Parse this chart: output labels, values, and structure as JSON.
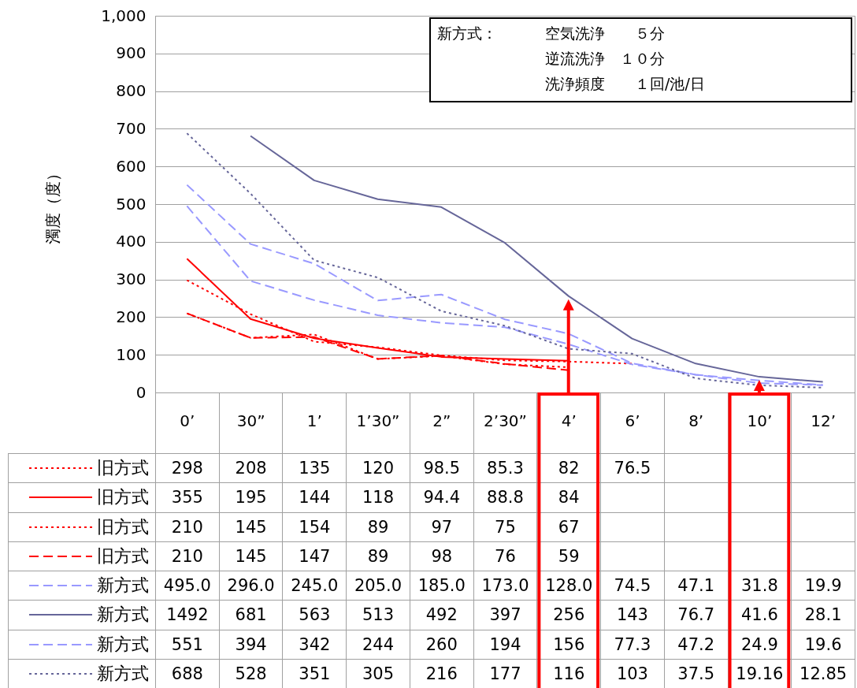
{
  "chart_data": {
    "type": "line",
    "ylabel": "濁度（度）",
    "categories": [
      "0’",
      "30”",
      "1’",
      "1’30”",
      "2”",
      "2’30”",
      "4’",
      "6’",
      "8’",
      "10’",
      "12’"
    ],
    "ylim": [
      0,
      1000
    ],
    "yticks": [
      0,
      100,
      200,
      300,
      400,
      500,
      600,
      700,
      800,
      900,
      {
        "value": 1000,
        "label": "1,000"
      }
    ],
    "grid": "y",
    "legend": "bottom",
    "marker": "none",
    "annotations": [
      "新方式：",
      "空気洗浄　　５分",
      "逆流洗浄　１０分",
      "洗浄頻度　　１回/池/日"
    ],
    "series": [
      {
        "name": "旧方式",
        "color": "#ff0000",
        "line_style": "dotted",
        "values": [
          298,
          208,
          135,
          120,
          98.5,
          85.3,
          82,
          76.5,
          null,
          null,
          null
        ],
        "value_labels": [
          "298",
          "208",
          "135",
          "120",
          "98.5",
          "85.3",
          "82",
          "76.5",
          null,
          null,
          null
        ]
      },
      {
        "name": "旧方式",
        "color": "#ff0000",
        "line_style": "solid",
        "values": [
          355,
          195,
          144,
          118,
          94.4,
          88.8,
          84,
          null,
          null,
          null,
          null
        ],
        "value_labels": [
          "355",
          "195",
          "144",
          "118",
          "94.4",
          "88.8",
          "84",
          null,
          null,
          null,
          null
        ]
      },
      {
        "name": "旧方式",
        "color": "#ff0000",
        "line_style": "dotted",
        "values": [
          210,
          145,
          154,
          89,
          97,
          75,
          67,
          null,
          null,
          null,
          null
        ],
        "value_labels": [
          "210",
          "145",
          "154",
          "89",
          "97",
          "75",
          "67",
          null,
          null,
          null,
          null
        ]
      },
      {
        "name": "旧方式",
        "color": "#ff0000",
        "line_style": "dashed",
        "values": [
          210,
          145,
          147,
          89,
          98,
          76,
          59,
          null,
          null,
          null,
          null
        ],
        "value_labels": [
          "210",
          "145",
          "147",
          "89",
          "98",
          "76",
          "59",
          null,
          null,
          null,
          null
        ]
      },
      {
        "name": "新方式",
        "color": "#9999ff",
        "line_style": "dashed",
        "values": [
          495,
          296,
          245,
          205,
          185,
          173,
          128,
          74.5,
          47.1,
          31.8,
          19.9
        ],
        "value_labels": [
          "495.0",
          "296.0",
          "245.0",
          "205.0",
          "185.0",
          "173.0",
          "128.0",
          "74.5",
          "47.1",
          "31.8",
          "19.9"
        ]
      },
      {
        "name": "新方式",
        "color": "#666699",
        "line_style": "solid",
        "values": [
          null,
          681,
          563,
          513,
          492,
          397,
          256,
          143,
          76.7,
          41.6,
          28.1
        ],
        "value_labels": [
          "1492",
          "681",
          "563",
          "513",
          "492",
          "397",
          "256",
          "143",
          "76.7",
          "41.6",
          "28.1"
        ]
      },
      {
        "name": "新方式",
        "color": "#9999ff",
        "line_style": "dashed",
        "values": [
          551,
          394,
          342,
          244,
          260,
          194,
          156,
          77.3,
          47.2,
          24.9,
          19.6
        ],
        "value_labels": [
          "551",
          "394",
          "342",
          "244",
          "260",
          "194",
          "156",
          "77.3",
          "47.2",
          "24.9",
          "19.6"
        ]
      },
      {
        "name": "新方式",
        "color": "#666699",
        "line_style": "dotted",
        "values": [
          688,
          528,
          351,
          305,
          216,
          177,
          116,
          103,
          37.5,
          19.16,
          12.85
        ],
        "value_labels": [
          "688",
          "528",
          "351",
          "305",
          "216",
          "177",
          "116",
          "103",
          "37.5",
          "19.16",
          "12.85"
        ]
      }
    ]
  }
}
